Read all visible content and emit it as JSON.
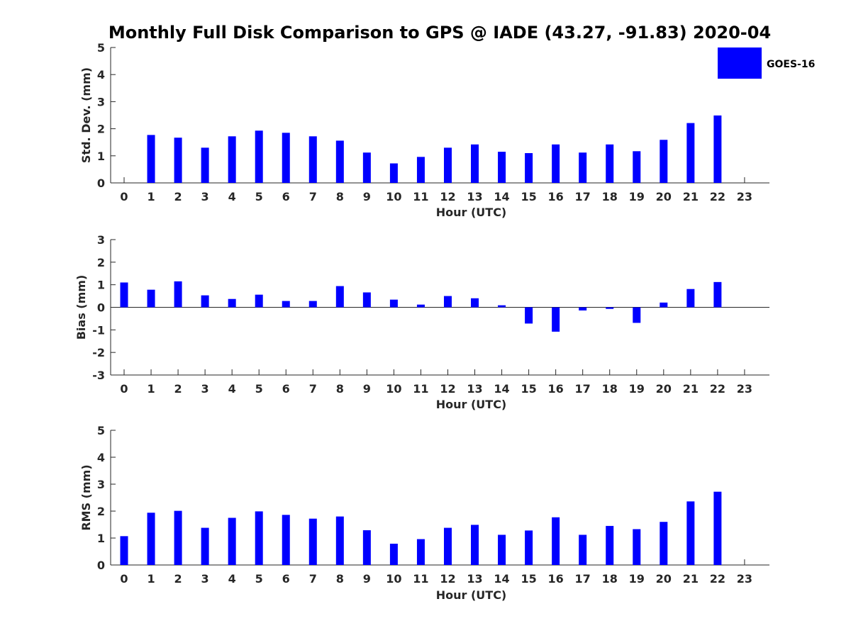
{
  "title": "Monthly Full Disk Comparison to GPS @ IADE (43.27, -91.83) 2020-04",
  "legend": {
    "label": "GOES-16",
    "color": "#0000ff"
  },
  "chart_data": [
    {
      "type": "bar",
      "categories": [
        "0",
        "1",
        "2",
        "3",
        "4",
        "5",
        "6",
        "7",
        "8",
        "9",
        "10",
        "11",
        "12",
        "13",
        "14",
        "15",
        "16",
        "17",
        "18",
        "19",
        "20",
        "21",
        "22",
        "23"
      ],
      "series": [
        {
          "name": "GOES-16",
          "values": [
            0,
            1.77,
            1.67,
            1.3,
            1.72,
            1.93,
            1.85,
            1.72,
            1.56,
            1.12,
            0.72,
            0.96,
            1.3,
            1.42,
            1.15,
            1.1,
            1.42,
            1.12,
            1.42,
            1.17,
            1.59,
            2.21,
            2.49,
            0
          ]
        }
      ],
      "xlabel": "Hour (UTC)",
      "ylabel": "Std. Dev. (mm)",
      "ylim": [
        0,
        5
      ],
      "yticks": [
        "0",
        "1",
        "2",
        "3",
        "4",
        "5"
      ],
      "legend": "top-right"
    },
    {
      "type": "bar",
      "categories": [
        "0",
        "1",
        "2",
        "3",
        "4",
        "5",
        "6",
        "7",
        "8",
        "9",
        "10",
        "11",
        "12",
        "13",
        "14",
        "15",
        "16",
        "17",
        "18",
        "19",
        "20",
        "21",
        "22",
        "23"
      ],
      "series": [
        {
          "name": "GOES-16",
          "values": [
            1.1,
            0.78,
            1.15,
            0.53,
            0.37,
            0.56,
            0.28,
            0.28,
            0.94,
            0.66,
            0.34,
            0.12,
            0.5,
            0.4,
            0.09,
            -0.72,
            -1.08,
            -0.14,
            -0.07,
            -0.69,
            0.21,
            0.81,
            1.12,
            0
          ]
        }
      ],
      "xlabel": "Hour (UTC)",
      "ylabel": "Bias (mm)",
      "ylim": [
        -3,
        3
      ],
      "yticks": [
        "-3",
        "-2",
        "-1",
        "0",
        "1",
        "2",
        "3"
      ]
    },
    {
      "type": "bar",
      "categories": [
        "0",
        "1",
        "2",
        "3",
        "4",
        "5",
        "6",
        "7",
        "8",
        "9",
        "10",
        "11",
        "12",
        "13",
        "14",
        "15",
        "16",
        "17",
        "18",
        "19",
        "20",
        "21",
        "22",
        "23"
      ],
      "series": [
        {
          "name": "GOES-16",
          "values": [
            1.07,
            1.94,
            2.01,
            1.38,
            1.75,
            1.99,
            1.86,
            1.72,
            1.8,
            1.29,
            0.79,
            0.96,
            1.38,
            1.49,
            1.12,
            1.28,
            1.77,
            1.12,
            1.45,
            1.33,
            1.6,
            2.36,
            2.72,
            0
          ]
        }
      ],
      "xlabel": "Hour (UTC)",
      "ylabel": "RMS (mm)",
      "ylim": [
        0,
        5
      ],
      "yticks": [
        "0",
        "1",
        "2",
        "3",
        "4",
        "5"
      ]
    }
  ]
}
